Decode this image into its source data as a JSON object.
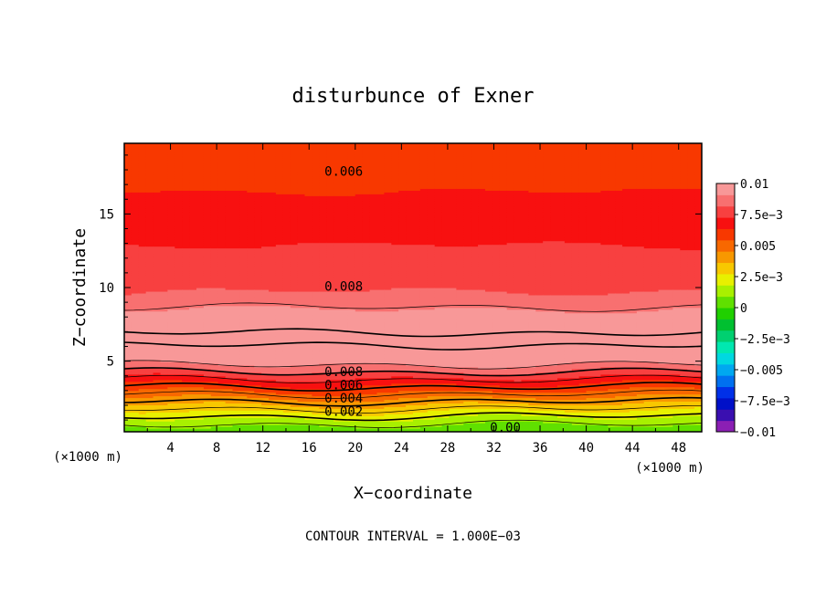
{
  "chart_data": {
    "type": "heatmap",
    "title": "disturbunce of Exner",
    "xlabel": "X−coordinate",
    "ylabel": "Z−coordinate",
    "x_unit": "(×1000 m)",
    "y_unit": "(×1000 m)",
    "xlim": [
      0,
      50
    ],
    "ylim": [
      0.2,
      19.8
    ],
    "x_ticks": [
      4,
      8,
      12,
      16,
      20,
      24,
      28,
      32,
      36,
      40,
      44,
      48
    ],
    "y_ticks": [
      5,
      10,
      15
    ],
    "footer": "CONTOUR INTERVAL = 1.000E−03",
    "contour_interval": 0.001,
    "contour_labels": [
      {
        "text": "0.006",
        "x": 19,
        "z": 17.9
      },
      {
        "text": "0.008",
        "x": 19,
        "z": 10.1
      },
      {
        "text": "0.008",
        "x": 19,
        "z": 4.3
      },
      {
        "text": "0.006",
        "x": 19,
        "z": 3.4
      },
      {
        "text": "0.004",
        "x": 19,
        "z": 2.5
      },
      {
        "text": "0.002",
        "x": 19,
        "z": 1.6
      },
      {
        "text": "0.00",
        "x": 33,
        "z": 0.5
      }
    ],
    "profile": {
      "z": [
        0.2,
        0.6,
        1.0,
        1.5,
        2.0,
        2.5,
        3.0,
        3.5,
        4.0,
        4.5,
        5.0,
        6.5,
        8.0,
        10.0,
        12.0,
        14.0,
        16.0,
        18.0,
        19.8
      ],
      "value": [
        0.0003,
        0.0008,
        0.0015,
        0.0025,
        0.0035,
        0.0045,
        0.0055,
        0.0065,
        0.0075,
        0.0085,
        0.0095,
        0.0102,
        0.0095,
        0.008,
        0.0075,
        0.007,
        0.0065,
        0.006,
        0.0055
      ]
    },
    "colorbar": {
      "min": -0.01,
      "max": 0.01,
      "tick_labels": [
        "0.01",
        "7.5e−3",
        "0.005",
        "2.5e−3",
        "0",
        "−2.5e−3",
        "−0.005",
        "−7.5e−3",
        "−0.01"
      ],
      "colors": [
        "#8b1fb4",
        "#3a0fb0",
        "#0010c8",
        "#0030e8",
        "#0070f0",
        "#00a8f0",
        "#00d8e0",
        "#00e8b0",
        "#00d070",
        "#00c030",
        "#20d000",
        "#60e000",
        "#a8f000",
        "#e8f000",
        "#f8c800",
        "#f89800",
        "#f86800",
        "#f83800",
        "#f81010",
        "#f84040",
        "#f87070",
        "#f89898"
      ]
    }
  }
}
